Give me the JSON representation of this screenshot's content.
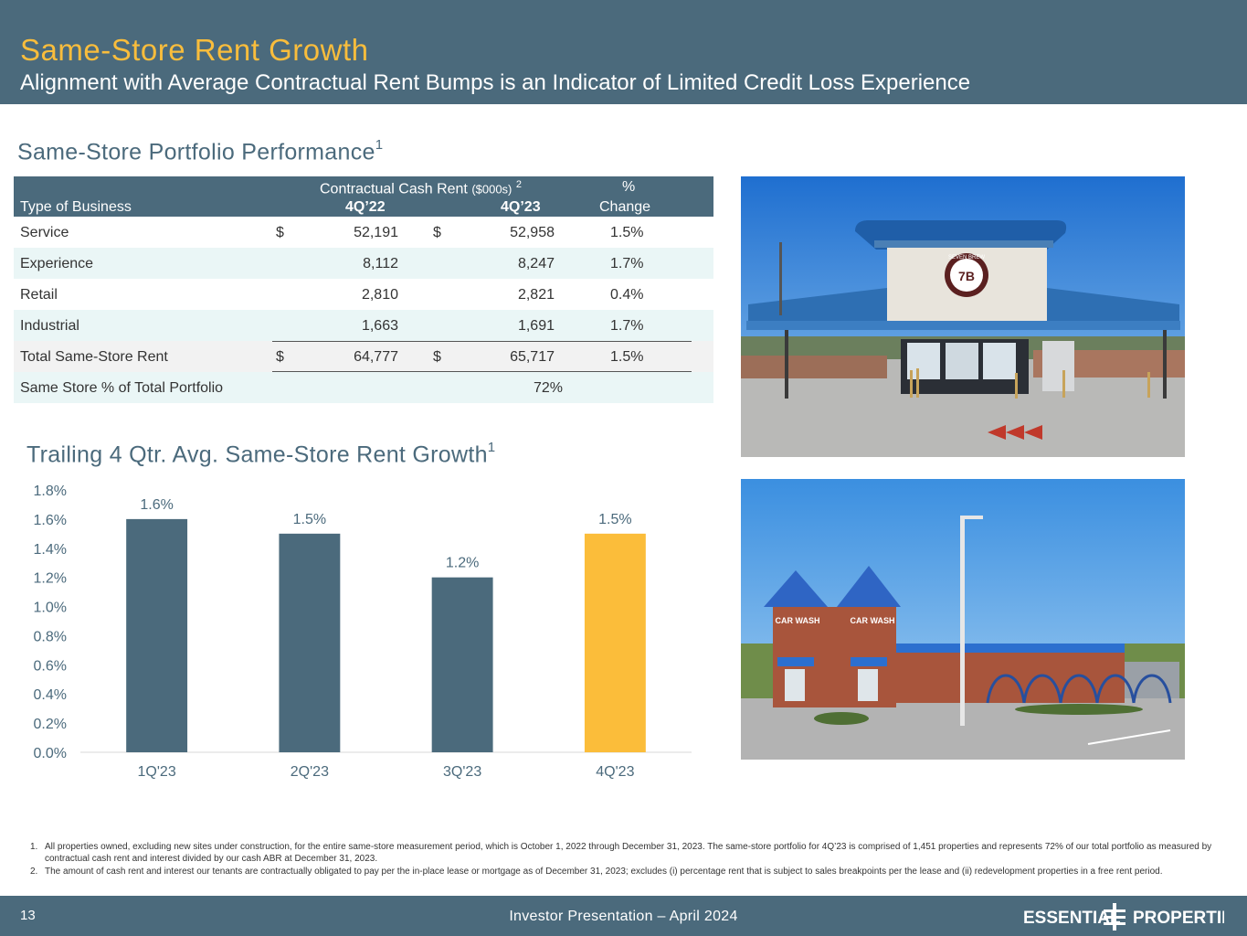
{
  "header": {
    "title": "Same-Store Rent Growth",
    "subtitle": "Alignment with Average Contractual Rent Bumps is an Indicator of Limited Credit Loss Experience"
  },
  "portfolio": {
    "title": "Same-Store Portfolio Performance",
    "title_sup": "1",
    "columns": {
      "group_label": "Contractual Cash Rent",
      "group_unit": "($000s)",
      "group_sup": "2",
      "type_label": "Type of Business",
      "col1": "4Q’22",
      "col2": "4Q’23",
      "pct_top": "%",
      "pct_bottom": "Change"
    },
    "rows": [
      {
        "type": "Service",
        "cur1": "$",
        "v1": "52,191",
        "cur2": "$",
        "v2": "52,958",
        "chg": "1.5%"
      },
      {
        "type": "Experience",
        "cur1": "",
        "v1": "8,112",
        "cur2": "",
        "v2": "8,247",
        "chg": "1.7%"
      },
      {
        "type": "Retail",
        "cur1": "",
        "v1": "2,810",
        "cur2": "",
        "v2": "2,821",
        "chg": "0.4%"
      },
      {
        "type": "Industrial",
        "cur1": "",
        "v1": "1,663",
        "cur2": "",
        "v2": "1,691",
        "chg": "1.7%"
      },
      {
        "type": "Total Same-Store Rent",
        "cur1": "$",
        "v1": "64,777",
        "cur2": "$",
        "v2": "65,717",
        "chg": "1.5%"
      }
    ],
    "portfolio_share": {
      "label": "Same Store % of Total Portfolio",
      "value": "72%"
    }
  },
  "growth": {
    "title": "Trailing 4 Qtr. Avg. Same-Store Rent Growth",
    "title_sup": "1"
  },
  "chart_data": {
    "type": "bar",
    "categories": [
      "1Q'23",
      "2Q'23",
      "3Q'23",
      "4Q'23"
    ],
    "values": [
      1.6,
      1.5,
      1.2,
      1.5
    ],
    "data_labels": [
      "1.6%",
      "1.5%",
      "1.2%",
      "1.5%"
    ],
    "yticks": [
      "0.0%",
      "0.2%",
      "0.4%",
      "0.6%",
      "0.8%",
      "1.0%",
      "1.2%",
      "1.4%",
      "1.6%",
      "1.8%"
    ],
    "ylim": [
      0,
      1.8
    ],
    "colors": [
      "#4b6a7c",
      "#4b6a7c",
      "#4b6a7c",
      "#fbbd3a"
    ],
    "grid": false,
    "legend": "none"
  },
  "photos": {
    "top_sign_text": "SEVEN BREW",
    "top_sign_number": "7B",
    "bottom_sign_1": "CAR WASH",
    "bottom_sign_2": "CAR WASH"
  },
  "footnotes": [
    {
      "num": "1.",
      "text": "All properties owned, excluding new sites under construction, for the entire same-store measurement period, which is October 1, 2022 through December 31, 2023. The same-store portfolio for 4Q’23 is comprised of 1,451 properties and represents 72% of our total portfolio as measured by contractual cash rent and interest divided by our cash ABR at December 31, 2023."
    },
    {
      "num": "2.",
      "text": "The amount of cash rent and interest our tenants are contractually obligated to pay per the in-place lease or mortgage as of December 31, 2023; excludes (i) percentage rent that is subject to sales breakpoints per the lease and (ii) redevelopment properties in a free rent period."
    }
  ],
  "footer": {
    "page": "13",
    "presentation": "Investor Presentation – April 2024",
    "logo_left": "ESSENTIAL",
    "logo_right": "PROPERTIES"
  }
}
